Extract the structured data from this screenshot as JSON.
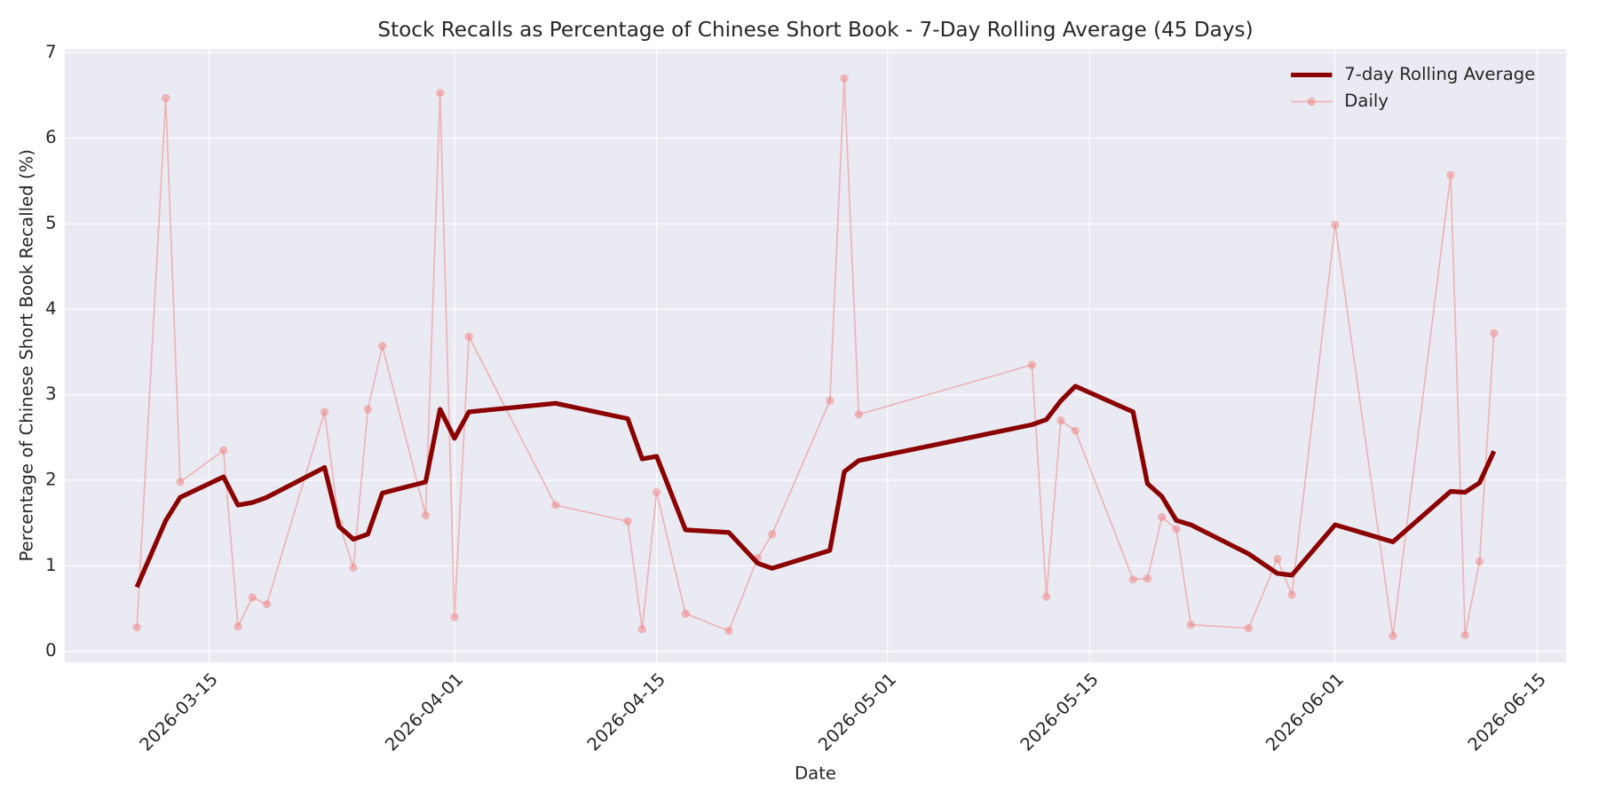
{
  "chart_data": {
    "type": "line",
    "title": "Stock Recalls as Percentage of Chinese Short Book - 7-Day Rolling Average (45 Days)",
    "x_label": "Date",
    "y_label": "Percentage of Chinese Short Book Recalled (%)",
    "x": [
      "2026-03-10",
      "2026-03-12",
      "2026-03-13",
      "2026-03-16",
      "2026-03-17",
      "2026-03-18",
      "2026-03-19",
      "2026-03-23",
      "2026-03-24",
      "2026-03-25",
      "2026-03-26",
      "2026-03-27",
      "2026-03-30",
      "2026-03-31",
      "2026-04-01",
      "2026-04-02",
      "2026-04-08",
      "2026-04-13",
      "2026-04-14",
      "2026-04-15",
      "2026-04-17",
      "2026-04-20",
      "2026-04-22",
      "2026-04-23",
      "2026-04-27",
      "2026-04-28",
      "2026-04-29",
      "2026-05-11",
      "2026-05-12",
      "2026-05-13",
      "2026-05-14",
      "2026-05-18",
      "2026-05-19",
      "2026-05-20",
      "2026-05-21",
      "2026-05-22",
      "2026-05-26",
      "2026-05-28",
      "2026-05-29",
      "2026-06-01",
      "2026-06-05",
      "2026-06-09",
      "2026-06-10",
      "2026-06-11",
      "2026-06-12"
    ],
    "series": [
      {
        "name": "7-day Rolling Average",
        "color": "#8b0000",
        "values": [
          0.75,
          1.53,
          1.8,
          2.04,
          1.71,
          1.74,
          1.8,
          2.15,
          1.46,
          1.31,
          1.37,
          1.85,
          1.98,
          2.83,
          2.49,
          2.8,
          2.9,
          2.72,
          2.25,
          2.28,
          1.42,
          1.39,
          1.03,
          0.97,
          1.18,
          2.1,
          2.23,
          2.65,
          2.71,
          2.93,
          3.1,
          2.8,
          1.96,
          1.81,
          1.53,
          1.48,
          1.14,
          0.91,
          0.89,
          1.48,
          1.28,
          1.87,
          1.86,
          1.97,
          2.34
        ]
      },
      {
        "name": "Daily",
        "color": "#f08080",
        "values": [
          0.28,
          6.47,
          1.98,
          2.35,
          0.29,
          0.63,
          0.55,
          2.8,
          1.5,
          0.98,
          2.83,
          3.57,
          1.59,
          6.53,
          0.4,
          3.68,
          1.71,
          1.52,
          0.26,
          1.86,
          0.44,
          0.24,
          1.09,
          1.37,
          2.93,
          6.7,
          2.77,
          3.35,
          0.64,
          2.7,
          2.58,
          0.84,
          0.85,
          1.57,
          1.43,
          0.31,
          0.27,
          1.08,
          0.66,
          4.99,
          0.18,
          5.57,
          0.19,
          1.05,
          3.72
        ]
      }
    ],
    "xlim": [
      "2026-03-05",
      "2026-06-17"
    ],
    "xticks": [
      "2026-03-15",
      "2026-04-01",
      "2026-04-15",
      "2026-05-01",
      "2026-05-15",
      "2026-06-01",
      "2026-06-15"
    ],
    "ylim": [
      -0.13,
      7.04
    ],
    "yticks": [
      0,
      1,
      2,
      3,
      4,
      5,
      6,
      7
    ],
    "grid": true,
    "legend": "upper right"
  }
}
